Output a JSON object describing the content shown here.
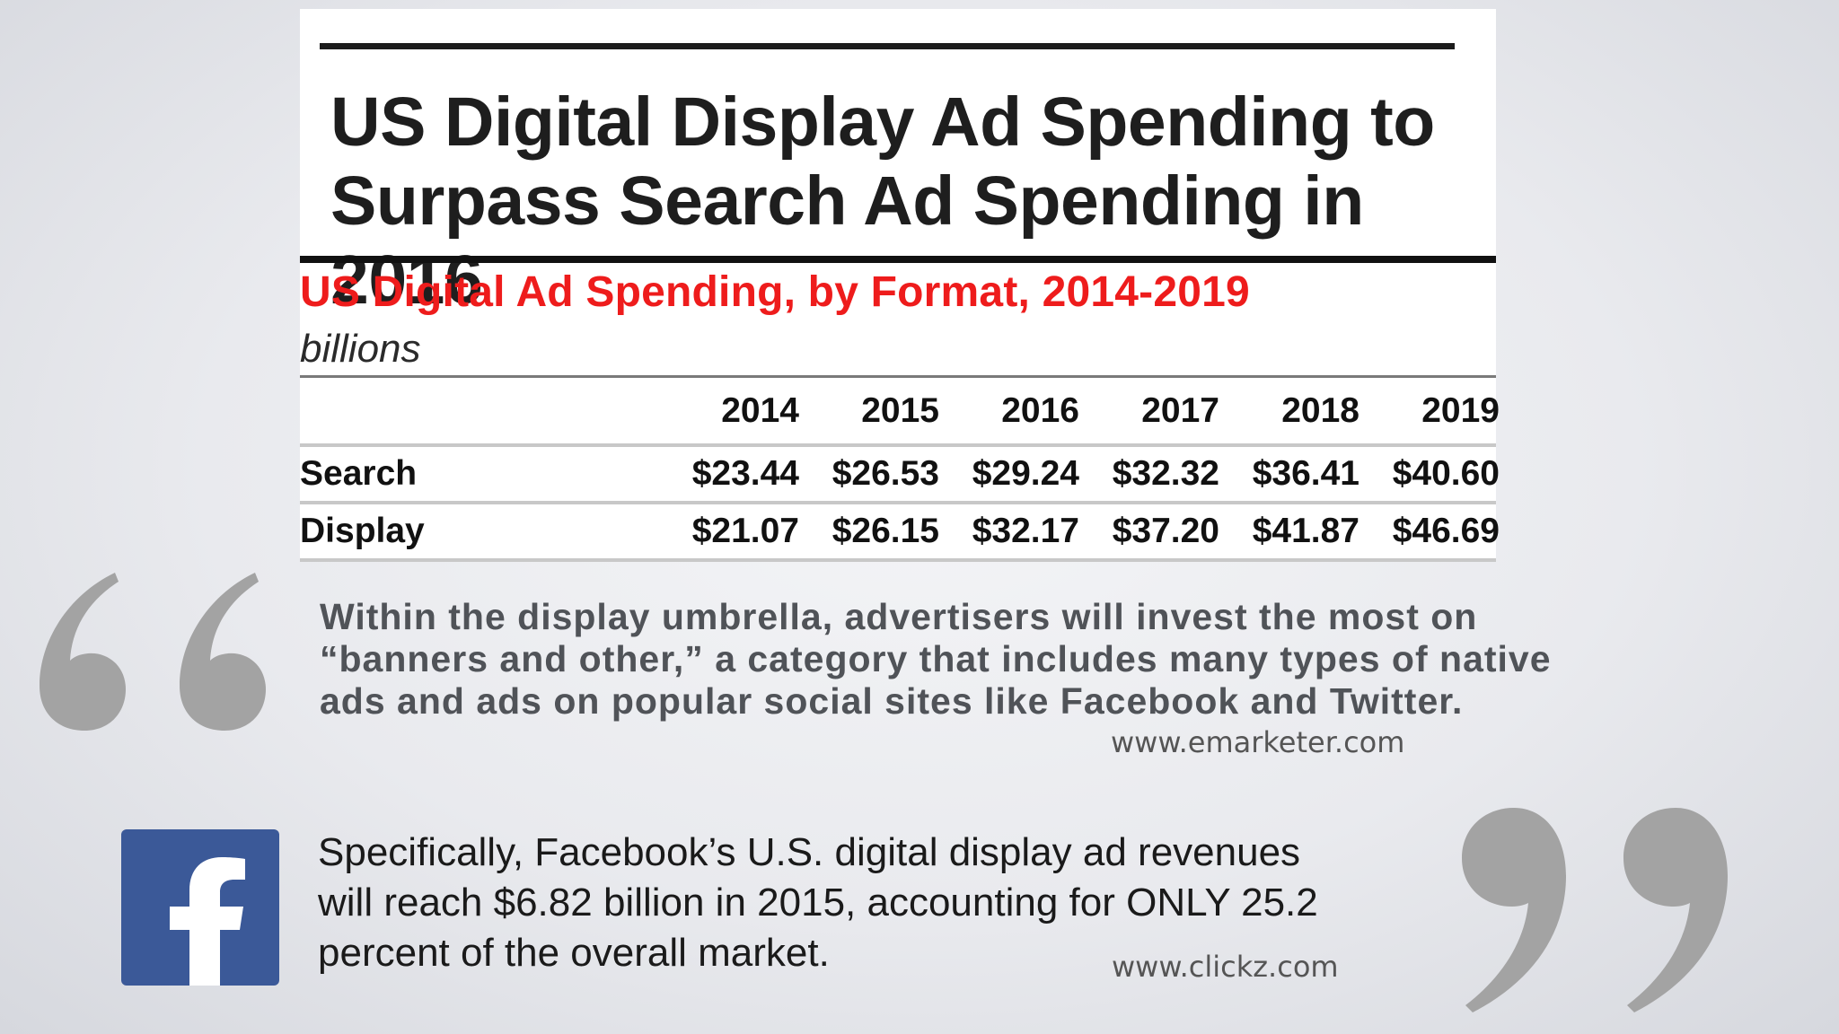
{
  "headline": "US Digital Display Ad Spending to Surpass Search Ad Spending in 2016",
  "chart_data": {
    "type": "table",
    "title": "US Digital Ad Spending, by Format, 2014-2019",
    "units": "billions",
    "columns": [
      "2014",
      "2015",
      "2016",
      "2017",
      "2018",
      "2019"
    ],
    "rows": [
      {
        "label": "Search",
        "cells": [
          "$23.44",
          "$26.53",
          "$29.24",
          "$32.32",
          "$36.41",
          "$40.60"
        ]
      },
      {
        "label": "Display",
        "cells": [
          "$21.07",
          "$26.15",
          "$32.17",
          "$37.20",
          "$41.87",
          "$46.69"
        ]
      }
    ]
  },
  "quote1": {
    "text": "Within the display umbrella, advertisers will invest the most on “banners and other,” a category that includes many types of native ads and ads on popular social sites like Facebook and Twitter.",
    "source": "www.emarketer.com"
  },
  "quote2": {
    "text": "Specifically, Facebook’s U.S. digital display ad revenues will reach $6.82 billion in 2015, accounting for ONLY 25.2 percent of the overall market.",
    "source": "www.clickz.com"
  },
  "icons": {
    "open_quote": "open-quote-icon",
    "close_quote": "close-quote-icon",
    "facebook": "facebook-logo"
  },
  "colors": {
    "subtitle_red": "#ee1c1c",
    "facebook_blue": "#3b5998",
    "quote_gray": "#a3a3a3"
  }
}
